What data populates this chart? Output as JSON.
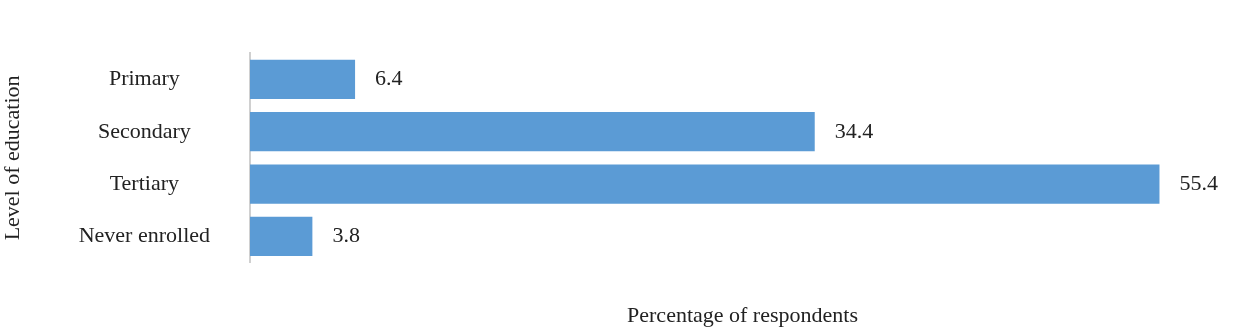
{
  "chart_data": {
    "type": "bar",
    "orientation": "horizontal",
    "xlabel": "Percentage of respondents",
    "ylabel": "Level of education",
    "categories": [
      "Primary",
      "Secondary",
      "Tertiary",
      "Never enrolled"
    ],
    "values": [
      6.4,
      34.4,
      55.4,
      3.8
    ],
    "color": "#5b9bd5",
    "data_labels": true,
    "grid": false,
    "legend": false
  }
}
